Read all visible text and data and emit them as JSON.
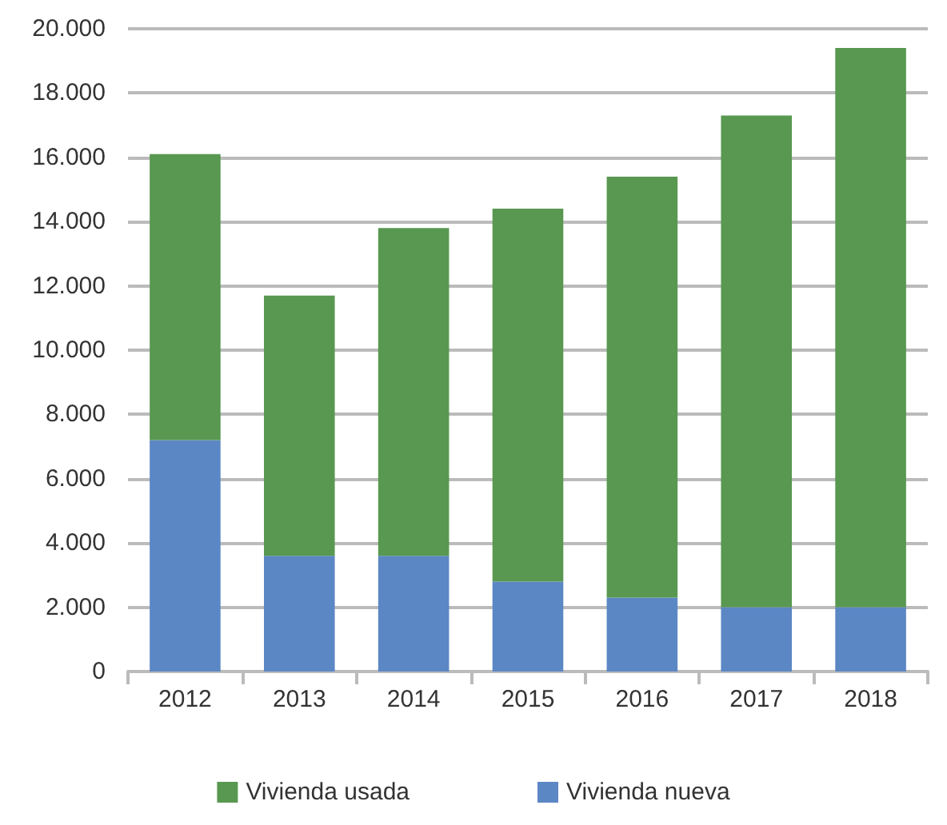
{
  "chart_data": {
    "type": "bar",
    "stacked": true,
    "categories": [
      "2012",
      "2013",
      "2014",
      "2015",
      "2016",
      "2017",
      "2018"
    ],
    "series": [
      {
        "name": "Vivienda nueva",
        "color": "#5b87c4",
        "values": [
          7200,
          3600,
          3600,
          2800,
          2300,
          2000,
          2000
        ]
      },
      {
        "name": "Vivienda usada",
        "color": "#589850",
        "values": [
          8900,
          8100,
          10200,
          11600,
          13100,
          15300,
          17400
        ]
      }
    ],
    "ylim": [
      0,
      20000
    ],
    "yticks": [
      {
        "value": 0,
        "label": "0"
      },
      {
        "value": 2000,
        "label": "2.000"
      },
      {
        "value": 4000,
        "label": "4.000"
      },
      {
        "value": 6000,
        "label": "6.000"
      },
      {
        "value": 8000,
        "label": "8.000"
      },
      {
        "value": 10000,
        "label": "10.000"
      },
      {
        "value": 12000,
        "label": "12.000"
      },
      {
        "value": 14000,
        "label": "14.000"
      },
      {
        "value": 16000,
        "label": "16.000"
      },
      {
        "value": 18000,
        "label": "18.000"
      },
      {
        "value": 20000,
        "label": "20.000"
      }
    ],
    "grid": "y",
    "legend": "bottom"
  }
}
